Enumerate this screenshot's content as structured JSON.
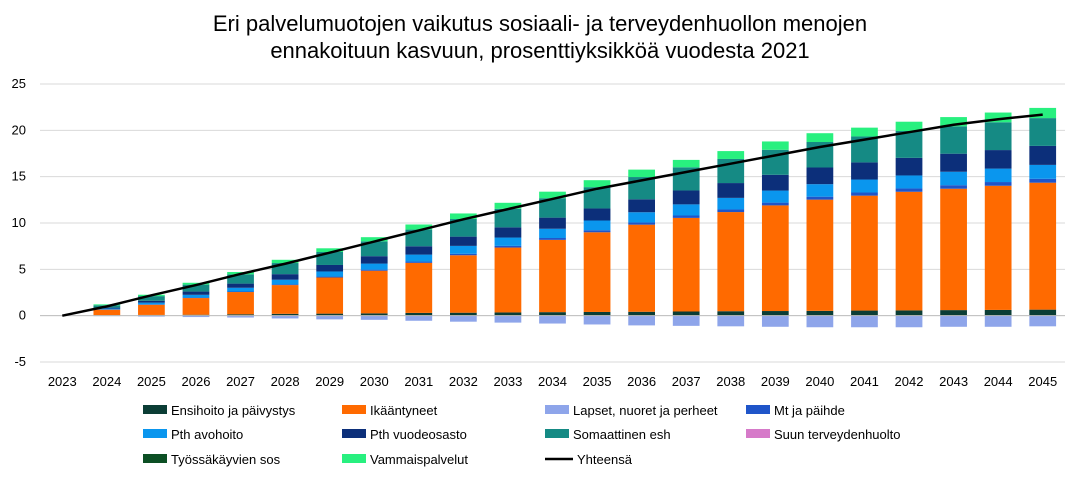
{
  "chart_data": {
    "type": "bar",
    "stacked": true,
    "title_lines": [
      "Eri palvelumuotojen vaikutus sosiaali- ja terveydenhuollon menojen",
      "ennakoituun kasvuun, prosenttiyksikköä vuodesta 2021"
    ],
    "categories": [
      "2023",
      "2024",
      "2025",
      "2026",
      "2027",
      "2028",
      "2029",
      "2030",
      "2031",
      "2032",
      "2033",
      "2034",
      "2035",
      "2036",
      "2037",
      "2038",
      "2039",
      "2040",
      "2041",
      "2042",
      "2043",
      "2044",
      "2045"
    ],
    "ylim": [
      -5,
      25
    ],
    "yticks": [
      -5,
      0,
      5,
      10,
      15,
      20,
      25
    ],
    "grid": true,
    "legend_position": "bottom",
    "series": [
      {
        "name": "Ensihoito ja päivystys",
        "color": "#0b3d35",
        "values": [
          0,
          0.05,
          0.08,
          0.1,
          0.15,
          0.2,
          0.22,
          0.25,
          0.3,
          0.32,
          0.35,
          0.38,
          0.4,
          0.42,
          0.45,
          0.48,
          0.5,
          0.52,
          0.55,
          0.57,
          0.6,
          0.62,
          0.65
        ]
      },
      {
        "name": "Ikääntyneet",
        "color": "#ff6a00",
        "values": [
          0,
          0.6,
          1.1,
          1.8,
          2.4,
          3.1,
          3.9,
          4.6,
          5.4,
          6.2,
          7.0,
          7.8,
          8.6,
          9.4,
          10.1,
          10.7,
          11.4,
          12.0,
          12.4,
          12.8,
          13.1,
          13.4,
          13.7
        ]
      },
      {
        "name": "Lapset, nuoret ja perheet",
        "color": "#8ea5ea",
        "values": [
          0,
          -0.05,
          -0.1,
          -0.15,
          -0.2,
          -0.3,
          -0.4,
          -0.45,
          -0.55,
          -0.65,
          -0.75,
          -0.85,
          -0.95,
          -1.05,
          -1.1,
          -1.15,
          -1.2,
          -1.25,
          -1.25,
          -1.25,
          -1.2,
          -1.2,
          -1.15
        ]
      },
      {
        "name": "Mt ja päihde",
        "color": "#1f55c9",
        "values": [
          0,
          0.02,
          0.03,
          0.05,
          0.06,
          0.08,
          0.1,
          0.12,
          0.14,
          0.16,
          0.18,
          0.2,
          0.22,
          0.24,
          0.26,
          0.28,
          0.3,
          0.32,
          0.34,
          0.36,
          0.38,
          0.4,
          0.42
        ]
      },
      {
        "name": "Pth avohoito",
        "color": "#0a96ee",
        "values": [
          0,
          0.1,
          0.2,
          0.3,
          0.4,
          0.5,
          0.55,
          0.65,
          0.75,
          0.85,
          0.9,
          1.0,
          1.05,
          1.1,
          1.2,
          1.25,
          1.3,
          1.35,
          1.4,
          1.4,
          1.45,
          1.45,
          1.5
        ]
      },
      {
        "name": "Pth vuodeosasto",
        "color": "#0c2f7a",
        "values": [
          0,
          0.1,
          0.2,
          0.35,
          0.45,
          0.6,
          0.7,
          0.8,
          0.9,
          1.0,
          1.1,
          1.2,
          1.3,
          1.4,
          1.5,
          1.6,
          1.7,
          1.8,
          1.85,
          1.9,
          1.95,
          2.0,
          2.05
        ]
      },
      {
        "name": "Somaattinen esh",
        "color": "#158a84",
        "values": [
          0,
          0.25,
          0.5,
          0.75,
          1.0,
          1.2,
          1.4,
          1.6,
          1.8,
          1.9,
          2.0,
          2.1,
          2.3,
          2.4,
          2.5,
          2.6,
          2.7,
          2.75,
          2.8,
          2.9,
          2.95,
          3.0,
          3.0
        ]
      },
      {
        "name": "Suun terveydenhuolto",
        "color": "#d67ac9",
        "values": [
          0,
          0,
          0,
          0,
          0,
          0,
          0,
          0,
          0,
          0,
          0,
          0,
          0,
          0,
          0,
          0,
          0,
          0,
          0,
          0,
          0,
          0,
          0
        ]
      },
      {
        "name": "Työssäkäyvien sos",
        "color": "#0c4f24",
        "values": [
          0,
          0,
          0,
          0,
          0,
          0,
          0,
          0,
          0,
          0,
          0,
          0,
          0,
          0,
          0,
          0,
          0,
          0,
          0,
          0,
          0,
          0,
          0
        ]
      },
      {
        "name": "Vammaispalvelut",
        "color": "#28f07f",
        "values": [
          0,
          0.1,
          0.15,
          0.2,
          0.25,
          0.35,
          0.4,
          0.45,
          0.55,
          0.6,
          0.65,
          0.7,
          0.75,
          0.8,
          0.8,
          0.85,
          0.9,
          0.95,
          0.95,
          1.0,
          1.0,
          1.05,
          1.1
        ]
      }
    ],
    "line_series": {
      "name": "Yhteensä",
      "color": "#000000",
      "values": [
        0,
        1.0,
        2.2,
        3.3,
        4.5,
        5.6,
        6.8,
        8.0,
        9.2,
        10.4,
        11.5,
        12.6,
        13.7,
        14.6,
        15.5,
        16.4,
        17.3,
        18.2,
        19.0,
        19.8,
        20.6,
        21.2,
        21.7
      ]
    }
  }
}
